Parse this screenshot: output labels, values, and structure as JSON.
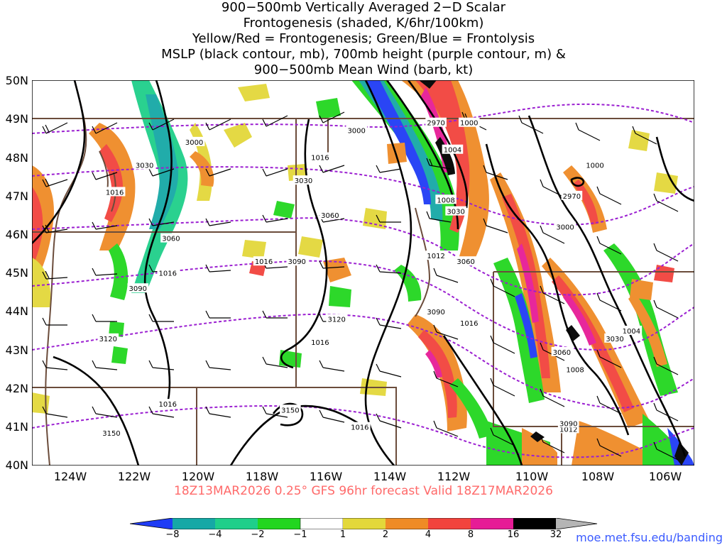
{
  "title_lines": [
    "900−500mb Vertically Averaged 2−D Scalar",
    "Frontogenesis (shaded, K/6hr/100km)",
    "Yellow/Red = Frontogenesis;  Green/Blue = Frontolysis",
    "MSLP (black contour, mb), 700mb height (purple contour, m) &",
    "900−500mb Mean Wind (barb, kt)"
  ],
  "lat_labels": [
    "50N",
    "49N",
    "48N",
    "47N",
    "46N",
    "45N",
    "44N",
    "43N",
    "42N",
    "41N",
    "40N"
  ],
  "lon_labels": [
    "124W",
    "122W",
    "120W",
    "118W",
    "116W",
    "114W",
    "112W",
    "110W",
    "108W",
    "106W"
  ],
  "valid_text": "18Z13MAR2026 0.25° GFS 96hr forecast Valid 18Z17MAR2026",
  "colorbar": {
    "labels": [
      "−8",
      "−4",
      "−2",
      "−1",
      "1",
      "2",
      "4",
      "8",
      "16",
      "32"
    ],
    "colors": [
      "#1f3cf5",
      "#16a8a6",
      "#1fcf8a",
      "#22d61f",
      "#ffffff",
      "#e3d83a",
      "#ef8b26",
      "#f2433d",
      "#e61c96",
      "#000000",
      "#b5b5b5"
    ]
  },
  "credit": "moe.met.fsu.edu/banding",
  "mslp_labels": [
    {
      "text": "1000",
      "lon": -111.8,
      "lat": 48.9
    },
    {
      "text": "1004",
      "lon": -112.3,
      "lat": 48.2
    },
    {
      "text": "1008",
      "lon": -112.5,
      "lat": 46.9
    },
    {
      "text": "1012",
      "lon": -112.8,
      "lat": 45.45
    },
    {
      "text": "1016",
      "lon": -122.5,
      "lat": 47.1
    },
    {
      "text": "1016",
      "lon": -116.3,
      "lat": 48.0
    },
    {
      "text": "1016",
      "lon": -118.0,
      "lat": 45.3
    },
    {
      "text": "1016",
      "lon": -120.9,
      "lat": 45.0
    },
    {
      "text": "1016",
      "lon": -116.3,
      "lat": 43.2
    },
    {
      "text": "1016",
      "lon": -111.8,
      "lat": 43.7
    },
    {
      "text": "1016",
      "lon": -120.9,
      "lat": 41.6
    },
    {
      "text": "1016",
      "lon": -115.1,
      "lat": 41.0
    },
    {
      "text": "1000",
      "lon": -108.0,
      "lat": 47.8
    },
    {
      "text": "1004",
      "lon": -106.9,
      "lat": 43.5
    },
    {
      "text": "1008",
      "lon": -108.6,
      "lat": 42.5
    },
    {
      "text": "1012",
      "lon": -108.8,
      "lat": 40.95
    }
  ],
  "height_labels": [
    {
      "text": "2970",
      "lon": -112.8,
      "lat": 48.9
    },
    {
      "text": "2970",
      "lon": -108.7,
      "lat": 47.0
    },
    {
      "text": "3000",
      "lon": -120.1,
      "lat": 48.4
    },
    {
      "text": "3000",
      "lon": -115.2,
      "lat": 48.7
    },
    {
      "text": "3000",
      "lon": -108.9,
      "lat": 46.2
    },
    {
      "text": "3030",
      "lon": -121.6,
      "lat": 47.8
    },
    {
      "text": "3030",
      "lon": -116.8,
      "lat": 47.4
    },
    {
      "text": "3030",
      "lon": -112.2,
      "lat": 46.6
    },
    {
      "text": "3030",
      "lon": -107.4,
      "lat": 43.3
    },
    {
      "text": "3060",
      "lon": -120.8,
      "lat": 45.9
    },
    {
      "text": "3060",
      "lon": -116.0,
      "lat": 46.5
    },
    {
      "text": "3060",
      "lon": -111.9,
      "lat": 45.3
    },
    {
      "text": "3060",
      "lon": -109.0,
      "lat": 42.95
    },
    {
      "text": "3090",
      "lon": -121.8,
      "lat": 44.6
    },
    {
      "text": "3090",
      "lon": -117.0,
      "lat": 45.3
    },
    {
      "text": "3090",
      "lon": -112.8,
      "lat": 44.0
    },
    {
      "text": "3090",
      "lon": -108.8,
      "lat": 41.1
    },
    {
      "text": "3120",
      "lon": -122.7,
      "lat": 43.3
    },
    {
      "text": "3120",
      "lon": -115.8,
      "lat": 43.8
    },
    {
      "text": "3150",
      "lon": -122.6,
      "lat": 40.85
    },
    {
      "text": "3150",
      "lon": -117.2,
      "lat": 41.45
    }
  ],
  "map_extent": {
    "lon": [
      -125.0,
      -105.0
    ],
    "lat": [
      40.0,
      50.0
    ]
  }
}
